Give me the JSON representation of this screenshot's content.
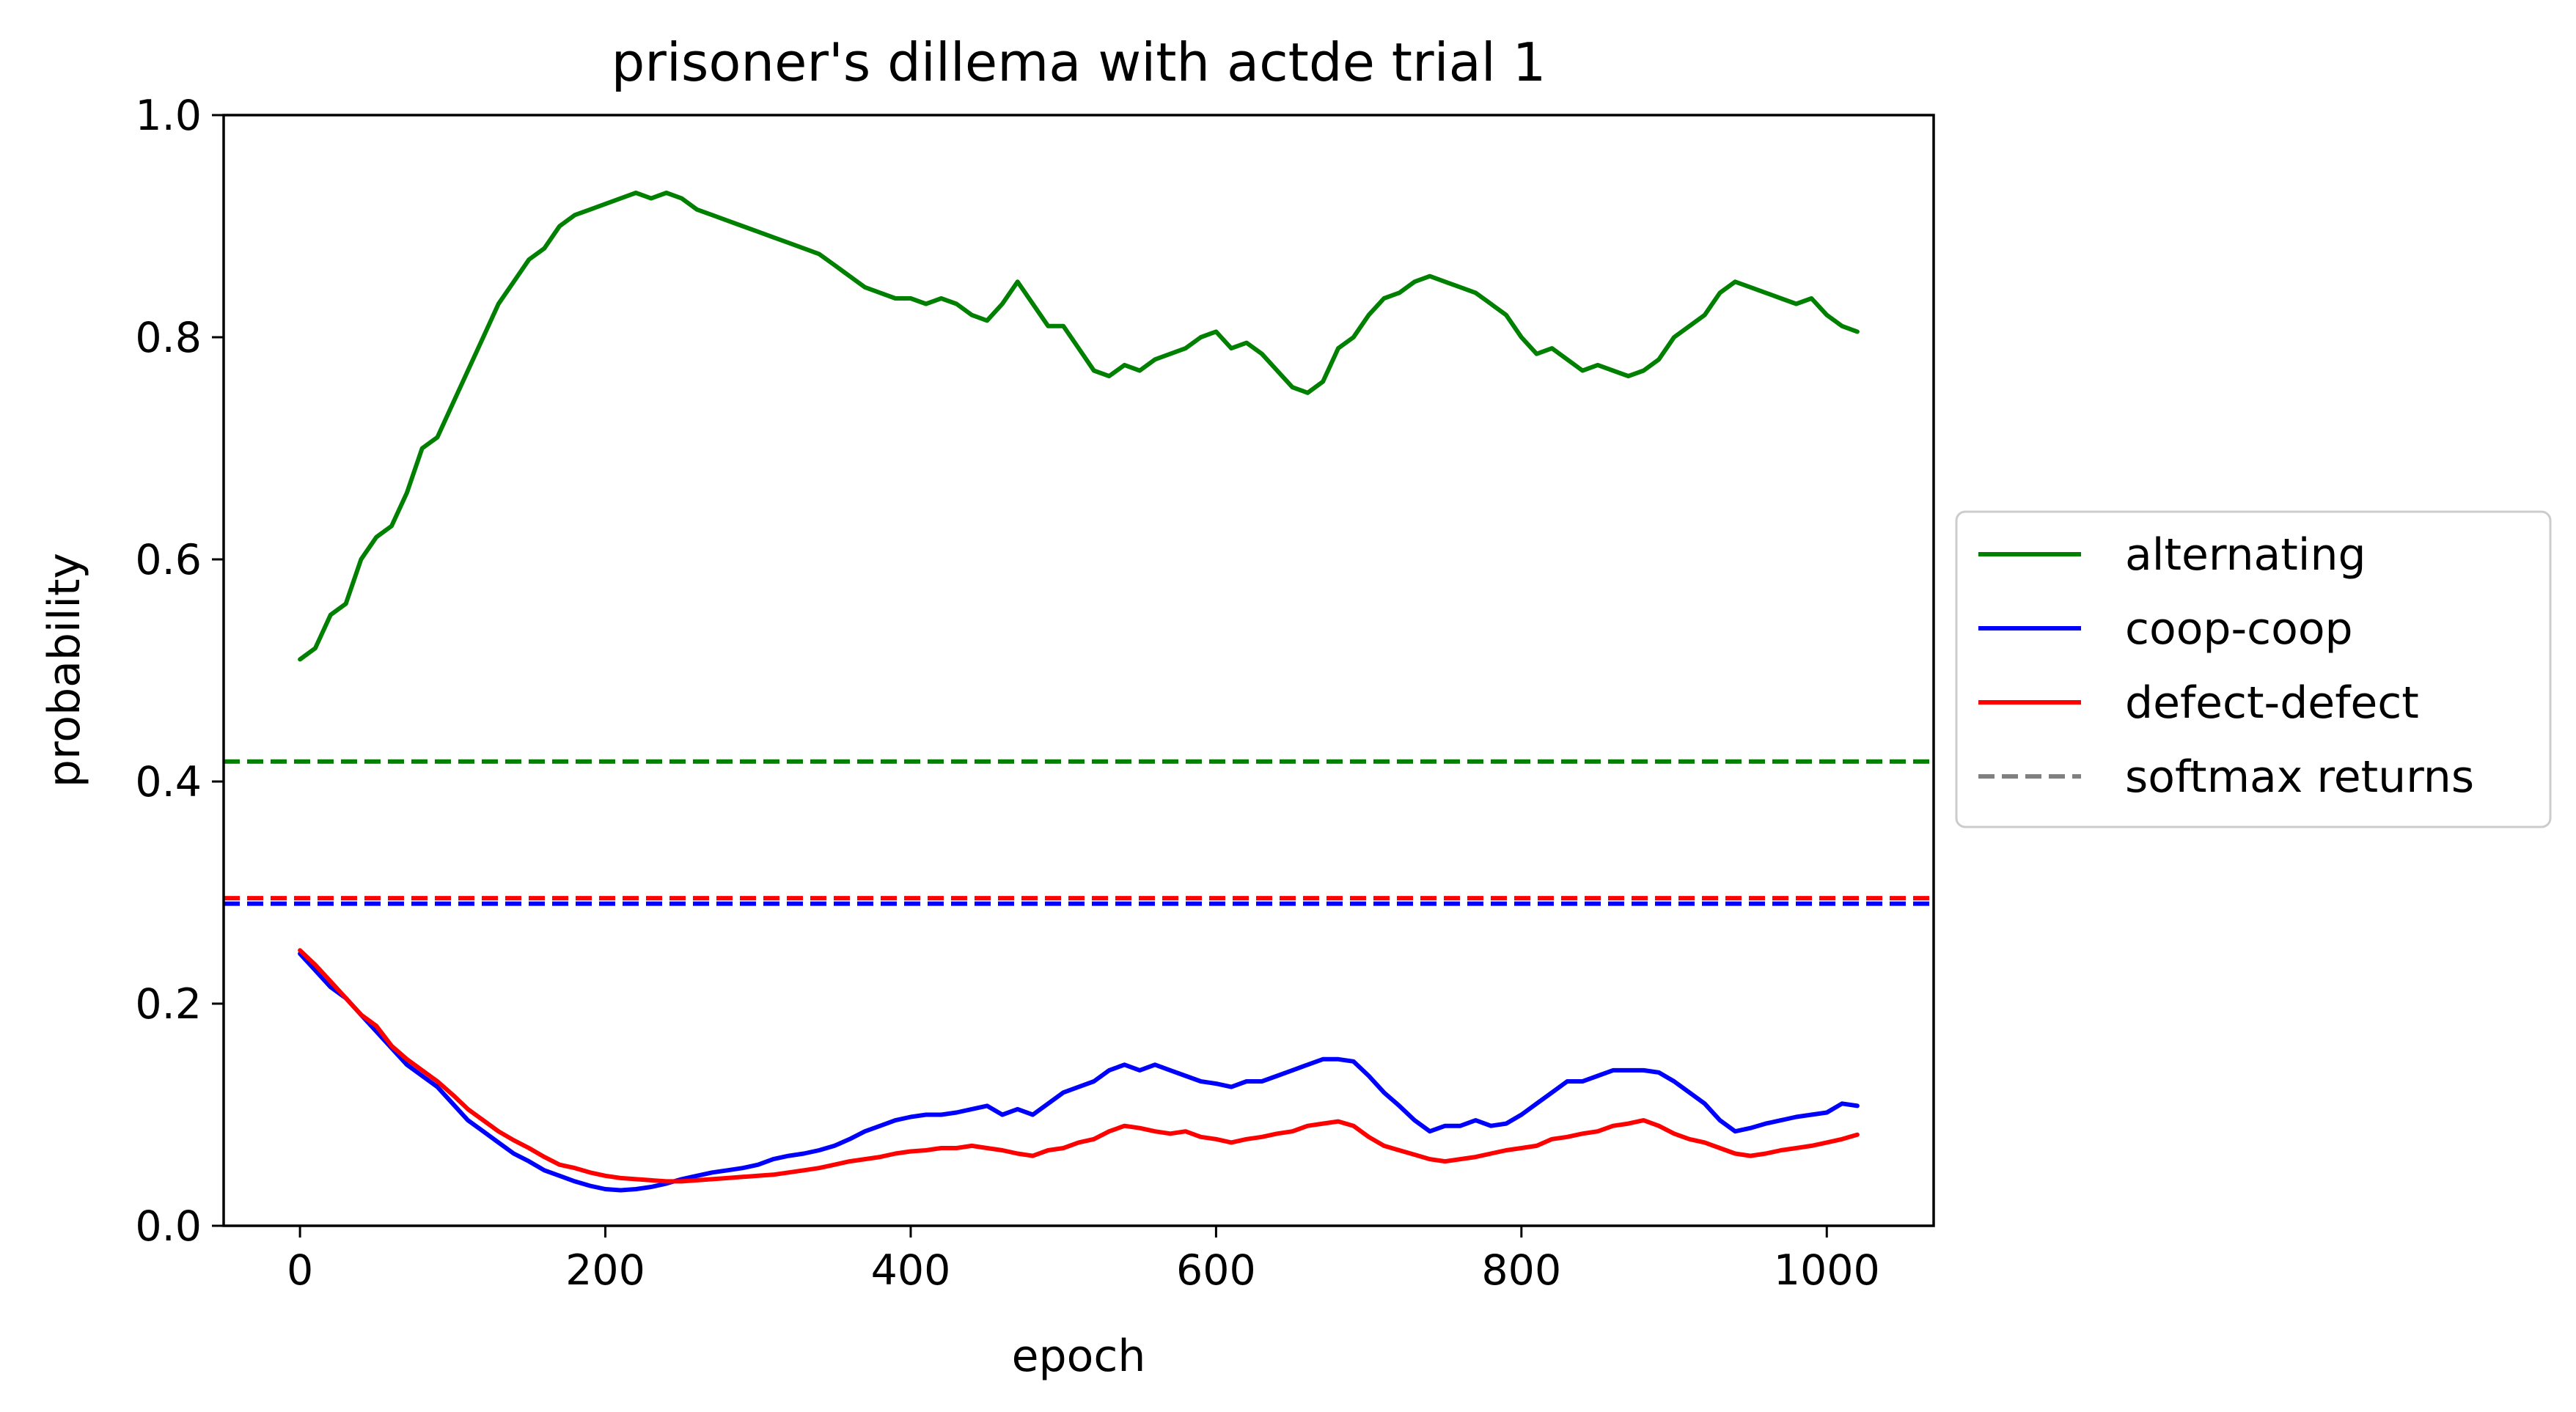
{
  "chart_data": {
    "type": "line",
    "title": "prisoner's dillema with actde trial 1",
    "xlabel": "epoch",
    "ylabel": "probability",
    "xlim": [
      -50,
      1070
    ],
    "ylim": [
      0.0,
      1.0
    ],
    "xticks": [
      {
        "value": 0,
        "label": "0"
      },
      {
        "value": 200,
        "label": "200"
      },
      {
        "value": 400,
        "label": "400"
      },
      {
        "value": 600,
        "label": "600"
      },
      {
        "value": 800,
        "label": "800"
      },
      {
        "value": 1000,
        "label": "1000"
      }
    ],
    "yticks": [
      {
        "value": 0.0,
        "label": "0.0"
      },
      {
        "value": 0.2,
        "label": "0.2"
      },
      {
        "value": 0.4,
        "label": "0.4"
      },
      {
        "value": 0.6,
        "label": "0.6"
      },
      {
        "value": 0.8,
        "label": "0.8"
      },
      {
        "value": 1.0,
        "label": "1.0"
      }
    ],
    "grid": false,
    "legend_position": "outside right, center",
    "series": [
      {
        "name": "alternating",
        "color": "#008000",
        "style": "solid",
        "x": [
          0,
          10,
          20,
          30,
          40,
          50,
          60,
          70,
          80,
          90,
          100,
          110,
          120,
          130,
          140,
          150,
          160,
          170,
          180,
          190,
          200,
          210,
          220,
          230,
          240,
          250,
          260,
          270,
          280,
          290,
          300,
          310,
          320,
          330,
          340,
          350,
          360,
          370,
          380,
          390,
          400,
          410,
          420,
          430,
          440,
          450,
          460,
          470,
          480,
          490,
          500,
          510,
          520,
          530,
          540,
          550,
          560,
          570,
          580,
          590,
          600,
          610,
          620,
          630,
          640,
          650,
          660,
          670,
          680,
          690,
          700,
          710,
          720,
          730,
          740,
          750,
          760,
          770,
          780,
          790,
          800,
          810,
          820,
          830,
          840,
          850,
          860,
          870,
          880,
          890,
          900,
          910,
          920,
          930,
          940,
          950,
          960,
          970,
          980,
          990,
          1000,
          1010,
          1020
        ],
        "y": [
          0.51,
          0.52,
          0.55,
          0.56,
          0.6,
          0.62,
          0.63,
          0.66,
          0.7,
          0.71,
          0.74,
          0.77,
          0.8,
          0.83,
          0.85,
          0.87,
          0.88,
          0.9,
          0.91,
          0.915,
          0.92,
          0.925,
          0.93,
          0.925,
          0.93,
          0.925,
          0.915,
          0.91,
          0.905,
          0.9,
          0.895,
          0.89,
          0.885,
          0.88,
          0.875,
          0.865,
          0.855,
          0.845,
          0.84,
          0.835,
          0.835,
          0.83,
          0.835,
          0.83,
          0.82,
          0.815,
          0.83,
          0.85,
          0.83,
          0.81,
          0.81,
          0.79,
          0.77,
          0.765,
          0.775,
          0.77,
          0.78,
          0.785,
          0.79,
          0.8,
          0.805,
          0.79,
          0.795,
          0.785,
          0.77,
          0.755,
          0.75,
          0.76,
          0.79,
          0.8,
          0.82,
          0.835,
          0.84,
          0.85,
          0.855,
          0.85,
          0.845,
          0.84,
          0.83,
          0.82,
          0.8,
          0.785,
          0.79,
          0.78,
          0.77,
          0.775,
          0.77,
          0.765,
          0.77,
          0.78,
          0.8,
          0.81,
          0.82,
          0.84,
          0.85,
          0.845,
          0.84,
          0.835,
          0.83,
          0.835,
          0.82,
          0.81,
          0.805
        ]
      },
      {
        "name": "coop-coop",
        "color": "#0000ff",
        "style": "solid",
        "x": [
          0,
          10,
          20,
          30,
          40,
          50,
          60,
          70,
          80,
          90,
          100,
          110,
          120,
          130,
          140,
          150,
          160,
          170,
          180,
          190,
          200,
          210,
          220,
          230,
          240,
          250,
          260,
          270,
          280,
          290,
          300,
          310,
          320,
          330,
          340,
          350,
          360,
          370,
          380,
          390,
          400,
          410,
          420,
          430,
          440,
          450,
          460,
          470,
          480,
          490,
          500,
          510,
          520,
          530,
          540,
          550,
          560,
          570,
          580,
          590,
          600,
          610,
          620,
          630,
          640,
          650,
          660,
          670,
          680,
          690,
          700,
          710,
          720,
          730,
          740,
          750,
          760,
          770,
          780,
          790,
          800,
          810,
          820,
          830,
          840,
          850,
          860,
          870,
          880,
          890,
          900,
          910,
          920,
          930,
          940,
          950,
          960,
          970,
          980,
          990,
          1000,
          1010,
          1020
        ],
        "y": [
          0.245,
          0.23,
          0.215,
          0.205,
          0.19,
          0.175,
          0.16,
          0.145,
          0.135,
          0.125,
          0.11,
          0.095,
          0.085,
          0.075,
          0.065,
          0.058,
          0.05,
          0.045,
          0.04,
          0.036,
          0.033,
          0.032,
          0.033,
          0.035,
          0.038,
          0.042,
          0.045,
          0.048,
          0.05,
          0.052,
          0.055,
          0.06,
          0.063,
          0.065,
          0.068,
          0.072,
          0.078,
          0.085,
          0.09,
          0.095,
          0.098,
          0.1,
          0.1,
          0.102,
          0.105,
          0.108,
          0.1,
          0.105,
          0.1,
          0.11,
          0.12,
          0.125,
          0.13,
          0.14,
          0.145,
          0.14,
          0.145,
          0.14,
          0.135,
          0.13,
          0.128,
          0.125,
          0.13,
          0.13,
          0.135,
          0.14,
          0.145,
          0.15,
          0.15,
          0.148,
          0.135,
          0.12,
          0.108,
          0.095,
          0.085,
          0.09,
          0.09,
          0.095,
          0.09,
          0.092,
          0.1,
          0.11,
          0.12,
          0.13,
          0.13,
          0.135,
          0.14,
          0.14,
          0.14,
          0.138,
          0.13,
          0.12,
          0.11,
          0.095,
          0.085,
          0.088,
          0.092,
          0.095,
          0.098,
          0.1,
          0.102,
          0.11,
          0.108
        ]
      },
      {
        "name": "defect-defect",
        "color": "#ff0000",
        "style": "solid",
        "x": [
          0,
          10,
          20,
          30,
          40,
          50,
          60,
          70,
          80,
          90,
          100,
          110,
          120,
          130,
          140,
          150,
          160,
          170,
          180,
          190,
          200,
          210,
          220,
          230,
          240,
          250,
          260,
          270,
          280,
          290,
          300,
          310,
          320,
          330,
          340,
          350,
          360,
          370,
          380,
          390,
          400,
          410,
          420,
          430,
          440,
          450,
          460,
          470,
          480,
          490,
          500,
          510,
          520,
          530,
          540,
          550,
          560,
          570,
          580,
          590,
          600,
          610,
          620,
          630,
          640,
          650,
          660,
          670,
          680,
          690,
          700,
          710,
          720,
          730,
          740,
          750,
          760,
          770,
          780,
          790,
          800,
          810,
          820,
          830,
          840,
          850,
          860,
          870,
          880,
          890,
          900,
          910,
          920,
          930,
          940,
          950,
          960,
          970,
          980,
          990,
          1000,
          1010,
          1020
        ],
        "y": [
          0.248,
          0.235,
          0.22,
          0.205,
          0.19,
          0.18,
          0.162,
          0.15,
          0.14,
          0.13,
          0.118,
          0.105,
          0.095,
          0.085,
          0.077,
          0.07,
          0.062,
          0.055,
          0.052,
          0.048,
          0.045,
          0.043,
          0.042,
          0.041,
          0.04,
          0.04,
          0.041,
          0.042,
          0.043,
          0.044,
          0.045,
          0.046,
          0.048,
          0.05,
          0.052,
          0.055,
          0.058,
          0.06,
          0.062,
          0.065,
          0.067,
          0.068,
          0.07,
          0.07,
          0.072,
          0.07,
          0.068,
          0.065,
          0.063,
          0.068,
          0.07,
          0.075,
          0.078,
          0.085,
          0.09,
          0.088,
          0.085,
          0.083,
          0.085,
          0.08,
          0.078,
          0.075,
          0.078,
          0.08,
          0.083,
          0.085,
          0.09,
          0.092,
          0.094,
          0.09,
          0.08,
          0.072,
          0.068,
          0.064,
          0.06,
          0.058,
          0.06,
          0.062,
          0.065,
          0.068,
          0.07,
          0.072,
          0.078,
          0.08,
          0.083,
          0.085,
          0.09,
          0.092,
          0.095,
          0.09,
          0.083,
          0.078,
          0.075,
          0.07,
          0.065,
          0.063,
          0.065,
          0.068,
          0.07,
          0.072,
          0.075,
          0.078,
          0.082
        ]
      },
      {
        "name": "softmax returns",
        "color": "#808080",
        "style": "dashed",
        "legend_only": true
      }
    ],
    "reference_lines": [
      {
        "value": 0.418,
        "color": "#008000",
        "style": "dashed"
      },
      {
        "value": 0.295,
        "color": "#ff0000",
        "style": "dashed"
      },
      {
        "value": 0.29,
        "color": "#0000ff",
        "style": "dashed"
      }
    ]
  }
}
